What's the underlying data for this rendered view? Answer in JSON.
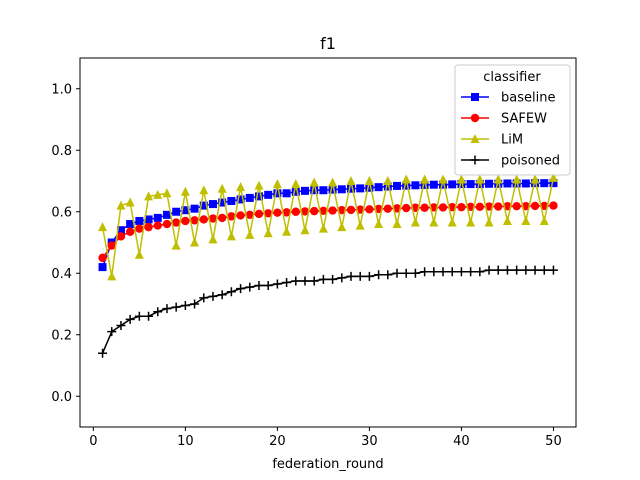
{
  "chart_data": {
    "type": "line",
    "title": "f1",
    "xlabel": "federation_round",
    "ylabel": "",
    "xlim": [
      -1.45,
      52.45
    ],
    "ylim": [
      -0.1,
      1.1
    ],
    "xticks": [
      0,
      10,
      20,
      30,
      40,
      50
    ],
    "yticks": [
      0.0,
      0.2,
      0.4,
      0.6,
      0.8,
      1.0
    ],
    "ytick_labels": [
      "0.0",
      "0.2",
      "0.4",
      "0.6",
      "0.8",
      "1.0"
    ],
    "grid": false,
    "legend": {
      "title": "classifier",
      "position": "top-right"
    },
    "x": [
      1,
      2,
      3,
      4,
      5,
      6,
      7,
      8,
      9,
      10,
      11,
      12,
      13,
      14,
      15,
      16,
      17,
      18,
      19,
      20,
      21,
      22,
      23,
      24,
      25,
      26,
      27,
      28,
      29,
      30,
      31,
      32,
      33,
      34,
      35,
      36,
      37,
      38,
      39,
      40,
      41,
      42,
      43,
      44,
      45,
      46,
      47,
      48,
      49,
      50
    ],
    "series": [
      {
        "name": "baseline",
        "color": "#0000ff",
        "marker": "square",
        "values": [
          0.42,
          0.5,
          0.54,
          0.56,
          0.57,
          0.575,
          0.58,
          0.59,
          0.6,
          0.605,
          0.61,
          0.62,
          0.625,
          0.63,
          0.635,
          0.64,
          0.645,
          0.65,
          0.655,
          0.66,
          0.66,
          0.665,
          0.668,
          0.67,
          0.67,
          0.672,
          0.673,
          0.675,
          0.676,
          0.678,
          0.68,
          0.682,
          0.684,
          0.685,
          0.686,
          0.687,
          0.688,
          0.688,
          0.689,
          0.69,
          0.69,
          0.69,
          0.691,
          0.691,
          0.692,
          0.692,
          0.692,
          0.693,
          0.693,
          0.693
        ]
      },
      {
        "name": "SAFEW",
        "color": "#ff0000",
        "marker": "circle",
        "values": [
          0.45,
          0.49,
          0.52,
          0.535,
          0.545,
          0.55,
          0.555,
          0.56,
          0.565,
          0.57,
          0.572,
          0.575,
          0.578,
          0.58,
          0.585,
          0.588,
          0.59,
          0.593,
          0.595,
          0.597,
          0.598,
          0.6,
          0.601,
          0.602,
          0.603,
          0.604,
          0.605,
          0.606,
          0.607,
          0.608,
          0.609,
          0.61,
          0.611,
          0.612,
          0.613,
          0.613,
          0.614,
          0.614,
          0.615,
          0.615,
          0.616,
          0.616,
          0.617,
          0.617,
          0.618,
          0.618,
          0.618,
          0.619,
          0.619,
          0.62
        ]
      },
      {
        "name": "LiM",
        "color": "#bfbf00",
        "marker": "triangle",
        "values": [
          0.55,
          0.39,
          0.62,
          0.63,
          0.46,
          0.65,
          0.655,
          0.66,
          0.49,
          0.665,
          0.5,
          0.67,
          0.51,
          0.675,
          0.52,
          0.68,
          0.525,
          0.685,
          0.53,
          0.69,
          0.535,
          0.69,
          0.54,
          0.695,
          0.545,
          0.695,
          0.55,
          0.7,
          0.555,
          0.7,
          0.56,
          0.7,
          0.56,
          0.705,
          0.565,
          0.705,
          0.565,
          0.705,
          0.565,
          0.705,
          0.565,
          0.705,
          0.565,
          0.705,
          0.57,
          0.705,
          0.57,
          0.705,
          0.57,
          0.71
        ]
      },
      {
        "name": "poisoned",
        "color": "#000000",
        "marker": "plus",
        "values": [
          0.14,
          0.21,
          0.23,
          0.25,
          0.26,
          0.26,
          0.275,
          0.285,
          0.29,
          0.295,
          0.3,
          0.32,
          0.325,
          0.33,
          0.34,
          0.35,
          0.355,
          0.36,
          0.36,
          0.365,
          0.37,
          0.375,
          0.375,
          0.375,
          0.38,
          0.38,
          0.385,
          0.39,
          0.39,
          0.39,
          0.395,
          0.395,
          0.4,
          0.4,
          0.4,
          0.405,
          0.405,
          0.405,
          0.405,
          0.405,
          0.405,
          0.405,
          0.41,
          0.41,
          0.41,
          0.41,
          0.41,
          0.41,
          0.41,
          0.41
        ]
      }
    ]
  }
}
